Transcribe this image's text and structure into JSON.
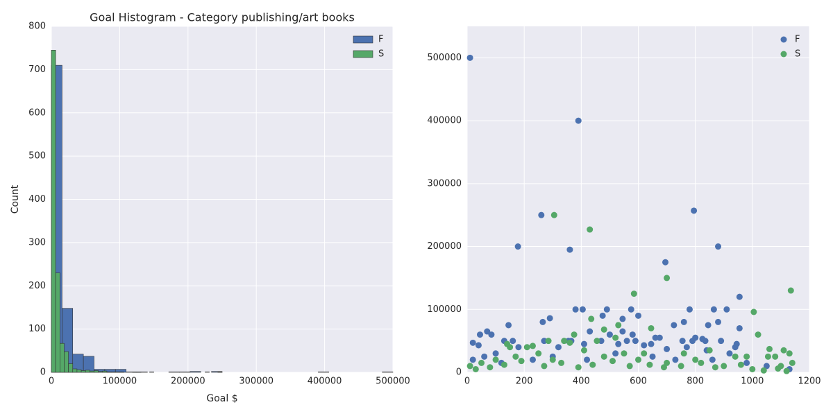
{
  "chart_data": [
    {
      "type": "histogram",
      "title": "Goal Histogram - Category publishing/art books",
      "xlabel": "Goal $",
      "ylabel": "Count",
      "xlim": [
        0,
        500000
      ],
      "ylim": [
        0,
        800
      ],
      "xticks": [
        0,
        100000,
        200000,
        300000,
        400000,
        500000
      ],
      "yticks": [
        0,
        100,
        200,
        300,
        400,
        500,
        600,
        700,
        800
      ],
      "grid": true,
      "legend": "upper right",
      "series": [
        {
          "name": "F",
          "color": "#4c72b0",
          "bins": [
            0,
            15625,
            31250,
            46875,
            62500,
            78125,
            93750,
            109375,
            125000,
            140625,
            156250,
            171875,
            187500,
            203125,
            218750,
            234375,
            250000,
            265625,
            281250,
            296875,
            312500,
            328125,
            343750,
            359375,
            375000,
            390625,
            406250,
            421875,
            437500,
            453125,
            468750,
            484375,
            500000
          ],
          "counts": [
            710,
            148,
            42,
            37,
            7,
            7,
            7,
            1,
            1,
            0,
            0,
            1,
            1,
            2,
            0,
            2,
            0,
            0,
            0,
            0,
            0,
            0,
            0,
            0,
            0,
            1,
            0,
            0,
            0,
            0,
            0,
            1
          ]
        },
        {
          "name": "S",
          "color": "#55a868",
          "bins": [
            0,
            6250,
            12500,
            18750,
            25000,
            31250,
            37500,
            43750,
            50000,
            56250,
            62500,
            68750,
            75000,
            81250,
            87500,
            93750,
            100000,
            106250,
            112500,
            118750,
            125000,
            131250,
            137500,
            143750,
            150000,
            156250,
            162500,
            168750,
            175000,
            181250,
            187500,
            193750,
            200000,
            206250,
            212500,
            218750,
            225000,
            231250,
            237500,
            243750,
            250000
          ],
          "counts": [
            745,
            230,
            67,
            48,
            20,
            8,
            6,
            4,
            5,
            3,
            4,
            2,
            3,
            1,
            1,
            1,
            1,
            0,
            0,
            1,
            1,
            0,
            0,
            1,
            0,
            0,
            0,
            0,
            0,
            0,
            0,
            0,
            0,
            0,
            0,
            0,
            1,
            0,
            0,
            1
          ]
        }
      ]
    },
    {
      "type": "scatter",
      "xlim": [
        0,
        1200
      ],
      "ylim": [
        0,
        550000
      ],
      "xticks": [
        0,
        200,
        400,
        600,
        800,
        1000,
        1200
      ],
      "yticks": [
        0,
        100000,
        200000,
        300000,
        400000,
        500000
      ],
      "grid": true,
      "legend": "upper right",
      "series": [
        {
          "name": "F",
          "color": "#4c72b0",
          "x": [
            10,
            390,
            260,
            795,
            178,
            360,
            880,
            695,
            955,
            380,
            405,
            490,
            575,
            780,
            865,
            910,
            600,
            475,
            290,
            545,
            265,
            760,
            880,
            145,
            725,
            845,
            955,
            70,
            430,
            545,
            45,
            500,
            580,
            85,
            660,
            675,
            800,
            825,
            835,
            130,
            160,
            270,
            355,
            365,
            470,
            560,
            590,
            755,
            790,
            890,
            945,
            20,
            40,
            410,
            620,
            645,
            530,
            100,
            180,
            320,
            700,
            770,
            940,
            920,
            840,
            20,
            60,
            120,
            230,
            300,
            420,
            520,
            650,
            730,
            860,
            980,
            1050,
            1130
          ],
          "values": [
            500000,
            400000,
            250000,
            257000,
            200000,
            195000,
            200000,
            175000,
            120000,
            100000,
            100000,
            100000,
            100000,
            100000,
            100000,
            100000,
            90000,
            90000,
            86000,
            85000,
            80000,
            80000,
            80000,
            75000,
            75000,
            75000,
            70000,
            65000,
            65000,
            65000,
            60000,
            60000,
            60000,
            60000,
            55000,
            55000,
            55000,
            53000,
            50000,
            50000,
            50000,
            50000,
            50000,
            50000,
            50000,
            50000,
            50000,
            50000,
            50000,
            50000,
            45000,
            47000,
            43000,
            45000,
            43000,
            45000,
            45000,
            30000,
            40000,
            40000,
            37000,
            40000,
            40000,
            30000,
            35000,
            20000,
            25000,
            15000,
            20000,
            25000,
            20000,
            30000,
            25000,
            20000,
            20000,
            15000,
            10000,
            5000
          ]
        },
        {
          "name": "S",
          "color": "#55a868",
          "x": [
            305,
            430,
            700,
            585,
            1135,
            1005,
            435,
            530,
            645,
            480,
            375,
            1020,
            285,
            340,
            455,
            520,
            1110,
            1060,
            1130,
            1055,
            1080,
            210,
            230,
            150,
            140,
            360,
            410,
            550,
            620,
            760,
            850,
            940,
            980,
            10,
            50,
            100,
            170,
            250,
            300,
            480,
            600,
            700,
            800,
            900,
            1000,
            1100,
            1140,
            30,
            80,
            130,
            190,
            270,
            330,
            390,
            440,
            510,
            570,
            640,
            690,
            750,
            820,
            870,
            960,
            1040,
            1090,
            1120
          ],
          "values": [
            250000,
            227000,
            150000,
            125000,
            130000,
            96000,
            85000,
            75000,
            70000,
            68000,
            60000,
            60000,
            50000,
            50000,
            50000,
            55000,
            35000,
            37000,
            30000,
            25000,
            25000,
            40000,
            42000,
            40000,
            45000,
            47000,
            35000,
            30000,
            30000,
            30000,
            35000,
            25000,
            25000,
            10000,
            15000,
            20000,
            25000,
            30000,
            20000,
            25000,
            20000,
            15000,
            20000,
            10000,
            5000,
            10000,
            15000,
            5000,
            8000,
            12000,
            18000,
            10000,
            15000,
            8000,
            12000,
            18000,
            10000,
            12000,
            8000,
            10000,
            15000,
            8000,
            12000,
            3000,
            6000,
            2000
          ]
        }
      ]
    }
  ]
}
